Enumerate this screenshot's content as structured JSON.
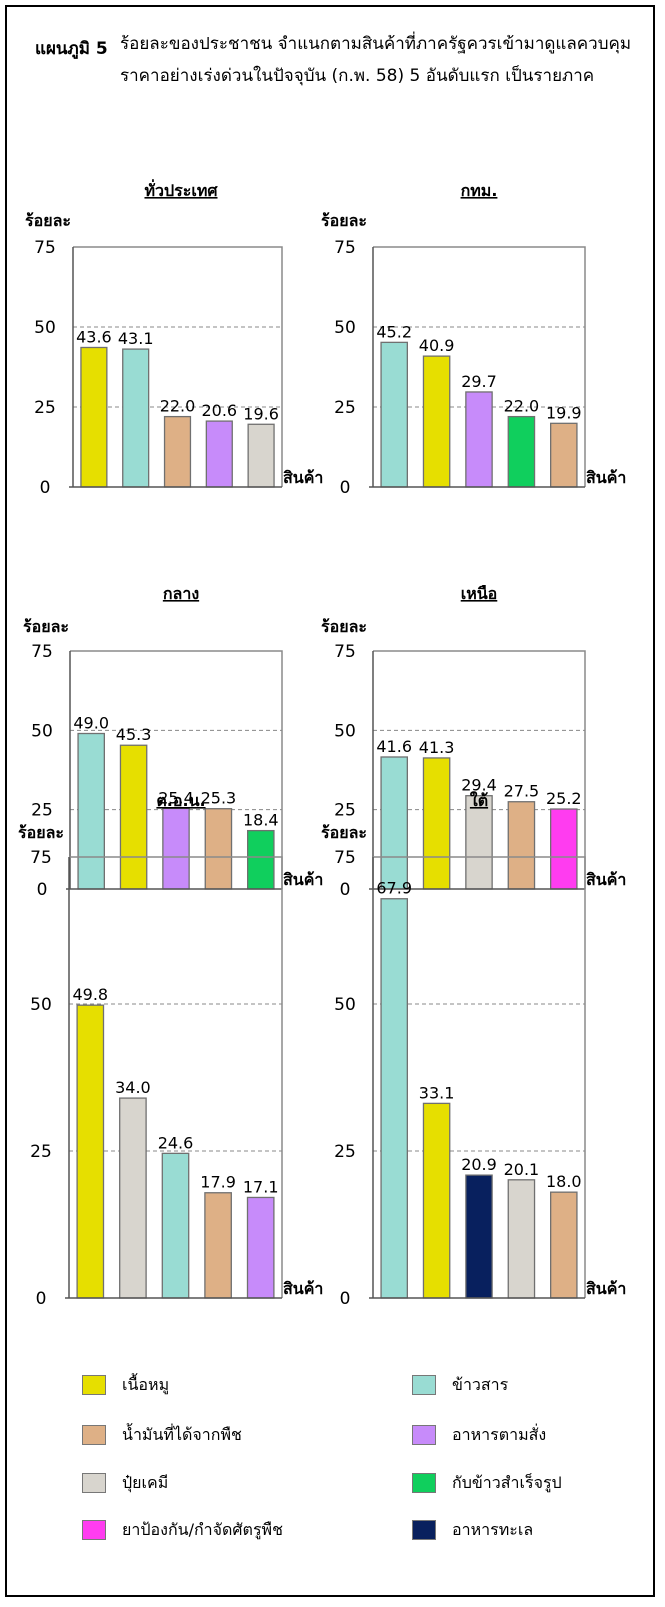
{
  "figure": {
    "label": "แผนภูมิ 5",
    "title": "ร้อยละของประชาชน  จำแนกตามสินค้าที่ภาครัฐควรเข้ามาดูแลควบคุมราคาอย่างเร่งด่วนในปัจจุบัน (ก.พ. 58) 5 อันดับแรก เป็นรายภาค"
  },
  "colors": {
    "pork": "#e6df00",
    "rice": "#99dcd3",
    "oil": "#deb086",
    "feed": "#c78bfa",
    "fertilizer": "#d8d5ce",
    "ready_food": "#10cf5d",
    "pesticide": "#ff3cf0",
    "seafood": "#08205e"
  },
  "legend": [
    {
      "key": "pork",
      "label": "เนื้อหมู"
    },
    {
      "key": "rice",
      "label": "ข้าวสาร"
    },
    {
      "key": "oil",
      "label": "น้ำมันที่ได้จากพืช"
    },
    {
      "key": "feed",
      "label": "อาหารตามสั่ง"
    },
    {
      "key": "fertilizer",
      "label": "ปุ๋ยเคมี"
    },
    {
      "key": "ready_food",
      "label": "กับข้าวสำเร็จรูป"
    },
    {
      "key": "pesticide",
      "label": "ยาป้องกัน/กำจัดศัตรูพืช"
    },
    {
      "key": "seafood",
      "label": "อาหารทะเล"
    }
  ],
  "chart_data": [
    {
      "type": "bar",
      "title": "ทั่วประเทศ",
      "ylabel": "ร้อยละ",
      "xlabel": "สินค้า",
      "ylim": [
        0,
        75
      ],
      "yticks": [
        0,
        25,
        50,
        75
      ],
      "grid": "dashed at 25 and 50",
      "categories": [
        "เนื้อหมู",
        "ข้าวสาร",
        "น้ำมันที่ได้จากพืช",
        "อาหารตามสั่ง",
        "ปุ๋ยเคมี"
      ],
      "keys": [
        "pork",
        "rice",
        "oil",
        "feed",
        "fertilizer"
      ],
      "values": [
        43.6,
        43.1,
        22.0,
        20.6,
        19.6
      ],
      "labels": [
        "43.6",
        "43.1",
        "22.0",
        "20.6",
        "19.6"
      ]
    },
    {
      "type": "bar",
      "title": "กทม.",
      "ylabel": "ร้อยละ",
      "xlabel": "สินค้า",
      "ylim": [
        0,
        75
      ],
      "yticks": [
        0,
        25,
        50,
        75
      ],
      "grid": "dashed at 25 and 50",
      "categories": [
        "ข้าวสาร",
        "เนื้อหมู",
        "อาหารตามสั่ง",
        "กับข้าวสำเร็จรูป",
        "น้ำมันที่ได้จากพืช"
      ],
      "keys": [
        "rice",
        "pork",
        "feed",
        "ready_food",
        "oil"
      ],
      "values": [
        45.2,
        40.9,
        29.7,
        22.0,
        19.9
      ],
      "labels": [
        "45.2",
        "40.9",
        "29.7",
        "22.0",
        "19.9"
      ]
    },
    {
      "type": "bar",
      "title": "กลาง",
      "ylabel": "ร้อยละ",
      "xlabel": "สินค้า",
      "ylim": [
        0,
        75
      ],
      "yticks": [
        0,
        25,
        50,
        75
      ],
      "grid": "dashed at 25 and 50",
      "categories": [
        "ข้าวสาร",
        "เนื้อหมู",
        "อาหารตามสั่ง",
        "น้ำมันที่ได้จากพืช",
        "กับข้าวสำเร็จรูป"
      ],
      "keys": [
        "rice",
        "pork",
        "feed",
        "oil",
        "ready_food"
      ],
      "values": [
        49.0,
        45.3,
        25.4,
        25.3,
        18.4
      ],
      "labels": [
        "49.0",
        "45.3",
        "25.4",
        "25.3",
        "18.4"
      ]
    },
    {
      "type": "bar",
      "title": "เหนือ",
      "ylabel": "ร้อยละ",
      "xlabel": "สินค้า",
      "ylim": [
        0,
        75
      ],
      "yticks": [
        0,
        25,
        50,
        75
      ],
      "grid": "dashed at 25 and 50",
      "categories": [
        "ข้าวสาร",
        "เนื้อหมู",
        "ปุ๋ยเคมี",
        "น้ำมันที่ได้จากพืช",
        "ยาป้องกัน/กำจัดศัตรูพืช"
      ],
      "keys": [
        "rice",
        "pork",
        "fertilizer",
        "oil",
        "pesticide"
      ],
      "values": [
        41.6,
        41.3,
        29.4,
        27.5,
        25.2
      ],
      "labels": [
        "41.6",
        "41.3",
        "29.4",
        "27.5",
        "25.2"
      ]
    },
    {
      "type": "bar",
      "title": "ต.อ.น.",
      "ylabel": "ร้อยละ",
      "xlabel": "สินค้า",
      "ylim": [
        0,
        75
      ],
      "yticks": [
        0,
        25,
        50,
        75
      ],
      "grid": "dashed at 25 and 50",
      "categories": [
        "เนื้อหมู",
        "ปุ๋ยเคมี",
        "ข้าวสาร",
        "น้ำมันที่ได้จากพืช",
        "อาหารตามสั่ง"
      ],
      "keys": [
        "pork",
        "fertilizer",
        "rice",
        "oil",
        "feed"
      ],
      "values": [
        49.8,
        34.0,
        24.6,
        17.9,
        17.1
      ],
      "labels": [
        "49.8",
        "34.0",
        "24.6",
        "17.9",
        "17.1"
      ]
    },
    {
      "type": "bar",
      "title": "ใต้",
      "ylabel": "ร้อยละ",
      "xlabel": "สินค้า",
      "ylim": [
        0,
        75
      ],
      "yticks": [
        0,
        25,
        50,
        75
      ],
      "grid": "dashed at 25 and 50",
      "categories": [
        "ข้าวสาร",
        "เนื้อหมู",
        "อาหารทะเล",
        "ปุ๋ยเคมี",
        "น้ำมันที่ได้จากพืช"
      ],
      "keys": [
        "rice",
        "pork",
        "seafood",
        "fertilizer",
        "oil"
      ],
      "values": [
        67.9,
        33.1,
        20.9,
        20.1,
        18.0
      ],
      "labels": [
        "67.9",
        "33.1",
        "20.9",
        "20.1",
        "18.0"
      ]
    }
  ]
}
